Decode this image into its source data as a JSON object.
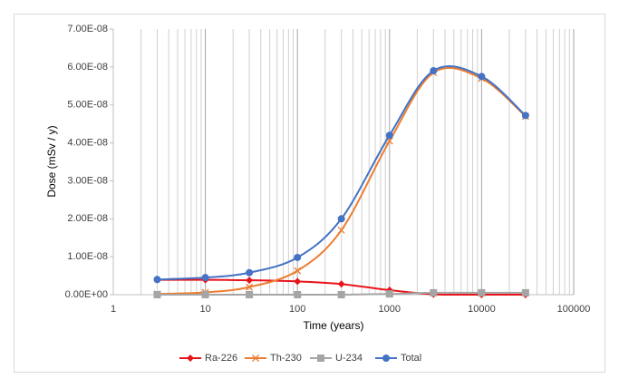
{
  "chart_data": {
    "type": "line",
    "x_label": "Time (years)",
    "y_label": "Dose  (mSv / y)",
    "x": [
      3,
      10,
      30,
      100,
      300,
      1000,
      3000,
      10000,
      30000
    ],
    "series": [
      {
        "name": "Ra-226",
        "color": "#e8141b",
        "marker": "diamond",
        "values": [
          3.9e-09,
          3.9e-09,
          3.8e-09,
          3.5e-09,
          2.8e-09,
          1.2e-09,
          1e-10,
          0,
          0
        ]
      },
      {
        "name": "Th-230",
        "color": "#ed7d31",
        "marker": "x",
        "values": [
          2e-10,
          6e-10,
          2e-09,
          6.3e-09,
          1.7e-08,
          4.05e-08,
          5.85e-08,
          5.7e-08,
          4.7e-08
        ]
      },
      {
        "name": "U-234",
        "color": "#a5a5a5",
        "marker": "square",
        "values": [
          0,
          0,
          0,
          0,
          0,
          2e-10,
          5e-10,
          5e-10,
          5e-10
        ]
      },
      {
        "name": "Total",
        "color": "#4472c4",
        "marker": "circle",
        "values": [
          4e-09,
          4.5e-09,
          5.8e-09,
          9.8e-09,
          2e-08,
          4.2e-08,
          5.9e-08,
          5.75e-08,
          4.72e-08
        ]
      }
    ],
    "xscale": "log",
    "xlim": [
      1,
      100000
    ],
    "xticks": [
      1,
      10,
      100,
      1000,
      10000,
      100000
    ],
    "ylim": [
      0,
      7e-08
    ],
    "yticks": [
      {
        "value": 0,
        "label": "0.00E+00"
      },
      {
        "value": 1e-08,
        "label": "1.00E-08"
      },
      {
        "value": 2e-08,
        "label": "2.00E-08"
      },
      {
        "value": 3e-08,
        "label": "3.00E-08"
      },
      {
        "value": 4e-08,
        "label": "4.00E-08"
      },
      {
        "value": 5e-08,
        "label": "5.00E-08"
      },
      {
        "value": 6e-08,
        "label": "6.00E-08"
      },
      {
        "value": 7e-08,
        "label": "7.00E-08"
      }
    ],
    "grid": true,
    "smooth": true,
    "legend": "bottom"
  }
}
